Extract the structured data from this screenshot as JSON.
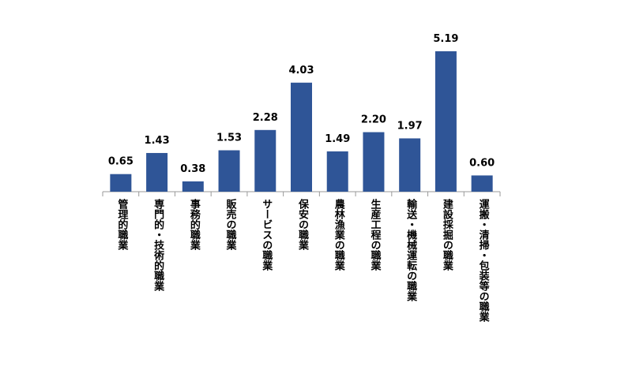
{
  "chart_data": {
    "type": "bar",
    "categories": [
      "管理的職業",
      "専門的・技術的職業",
      "事務的職業",
      "販売の職業",
      "サービスの職業",
      "保安の職業",
      "農林漁業の職業",
      "生産工程の職業",
      "輸送・機械運転の職業",
      "建設採掘の職業",
      "運搬・清掃・包装等の職業"
    ],
    "values": [
      0.65,
      1.43,
      0.38,
      1.53,
      2.28,
      4.03,
      1.49,
      2.2,
      1.97,
      5.19,
      0.6
    ],
    "value_labels": [
      "0.65",
      "1.43",
      "0.38",
      "1.53",
      "2.28",
      "4.03",
      "1.49",
      "2.20",
      "1.97",
      "5.19",
      "0.60"
    ],
    "color": "#2f5597"
  }
}
